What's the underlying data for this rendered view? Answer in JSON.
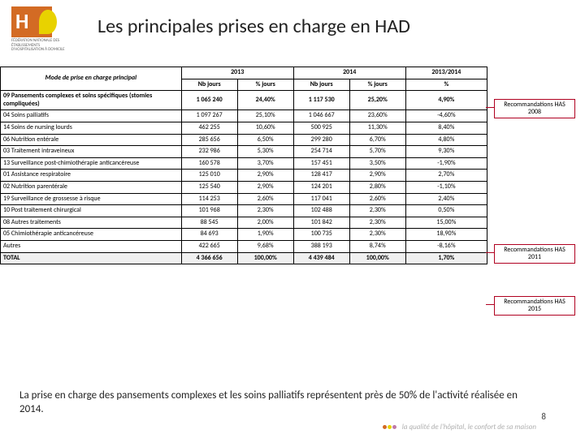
{
  "logo": {
    "sub": "FÉDÉRATION NATIONALE DES ÉTABLISSEMENTS D'HOSPITALISATION À DOMICILE"
  },
  "title": "Les principales prises en charge en HAD",
  "table": {
    "header": {
      "mode": "Mode de prise en charge principal",
      "y2013": "2013",
      "y2014": "2014",
      "evo": "2013/2014",
      "nbj": "Nb jours",
      "pctj": "% jours",
      "pct": "%"
    },
    "rows": [
      {
        "label": "09 Pansements complexes et soins spécifiques (stomies compliquées)",
        "nj13": "1 065 240",
        "pj13": "24,40%",
        "nj14": "1 117 530",
        "pj14": "25,20%",
        "evo": "4,90%",
        "bold": true
      },
      {
        "label": "04 Soins palliatifs",
        "nj13": "1 097 267",
        "pj13": "25,10%",
        "nj14": "1 046 667",
        "pj14": "23,60%",
        "evo": "-4,60%"
      },
      {
        "label": "14 Soins de nursing lourds",
        "nj13": "462 255",
        "pj13": "10,60%",
        "nj14": "500 925",
        "pj14": "11,30%",
        "evo": "8,40%"
      },
      {
        "label": "06 Nutrition entérale",
        "nj13": "285 656",
        "pj13": "6,50%",
        "nj14": "299 280",
        "pj14": "6,70%",
        "evo": "4,80%"
      },
      {
        "label": "03 Traitement intraveineux",
        "nj13": "232 986",
        "pj13": "5,30%",
        "nj14": "254 714",
        "pj14": "5,70%",
        "evo": "9,30%"
      },
      {
        "label": "13 Surveillance post-chimiothérapie anticancéreuse",
        "nj13": "160 578",
        "pj13": "3,70%",
        "nj14": "157 451",
        "pj14": "3,50%",
        "evo": "-1,90%"
      },
      {
        "label": "01 Assistance respiratoire",
        "nj13": "125 010",
        "pj13": "2,90%",
        "nj14": "128 417",
        "pj14": "2,90%",
        "evo": "2,70%"
      },
      {
        "label": "02 Nutrition parentérale",
        "nj13": "125 540",
        "pj13": "2,90%",
        "nj14": "124 201",
        "pj14": "2,80%",
        "evo": "-1,10%"
      },
      {
        "label": "19 Surveillance de grossesse à risque",
        "nj13": "114 253",
        "pj13": "2,60%",
        "nj14": "117 041",
        "pj14": "2,60%",
        "evo": "2,40%"
      },
      {
        "label": "10 Post traitement chirurgical",
        "nj13": "101 968",
        "pj13": "2,30%",
        "nj14": "102 488",
        "pj14": "2,30%",
        "evo": "0,50%"
      },
      {
        "label": "08 Autres traitements",
        "nj13": "88 545",
        "pj13": "2,00%",
        "nj14": "101 842",
        "pj14": "2,30%",
        "evo": "15,00%"
      },
      {
        "label": "05 Chimiothérapie anticancéreuse",
        "nj13": "84 693",
        "pj13": "1,90%",
        "nj14": "100 735",
        "pj14": "2,30%",
        "evo": "18,90%"
      },
      {
        "label": "Autres",
        "nj13": "422 665",
        "pj13": "9,68%",
        "nj14": "388 193",
        "pj14": "8,74%",
        "evo": "-8,16%"
      }
    ],
    "total": {
      "label": "TOTAL",
      "nj13": "4 366 656",
      "pj13": "100,00%",
      "nj14": "4 439 484",
      "pj14": "100,00%",
      "evo": "1,70%"
    }
  },
  "annotations": {
    "a1": "Recommandations HAS 2008",
    "a2": "Recommandations HAS 2011",
    "a3": "Recommandations HAS 2015"
  },
  "bottom": "La prise en charge des pansements complexes et les soins palliatifs représentent près de 50% de l'activité réalisée en 2014.",
  "footerBrand": "la qualité de l'hôpital, le confort de sa maison",
  "pageNum": "8",
  "colors": {
    "red": "#b00020",
    "orange": "#d36b24"
  },
  "col_widths": {
    "label": 200,
    "num": 62,
    "evo": 90
  }
}
